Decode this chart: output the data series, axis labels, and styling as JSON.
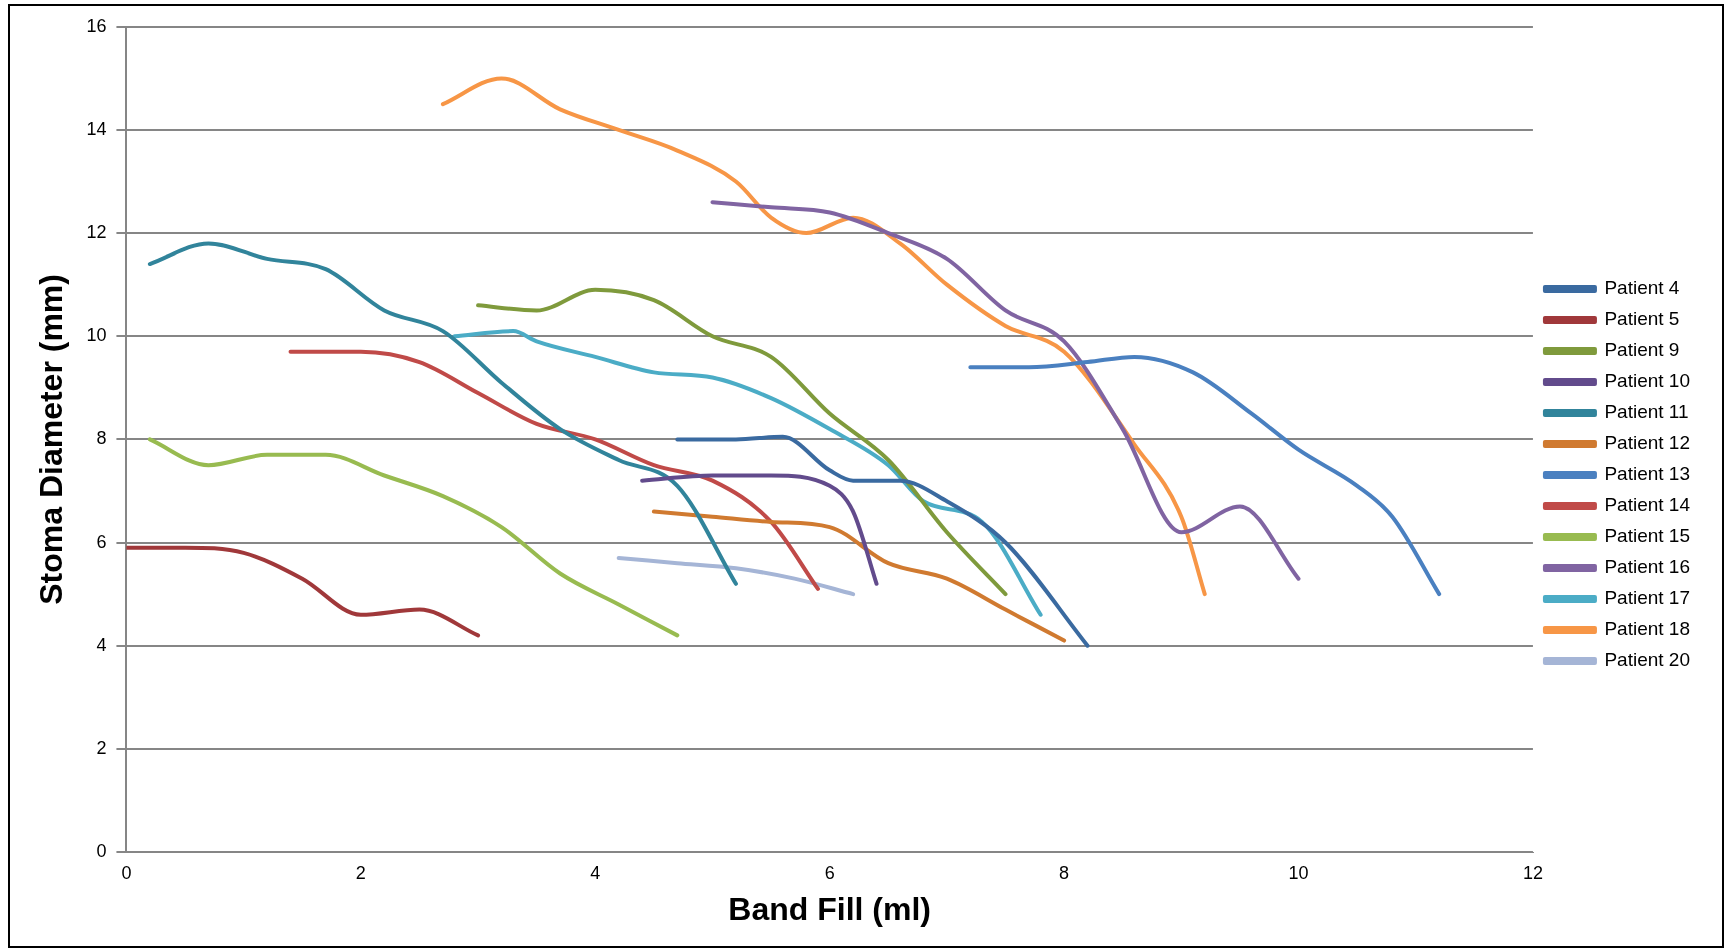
{
  "chart_data": {
    "type": "line",
    "xlabel": "Band Fill (ml)",
    "ylabel": "Stoma Diameter (mm)",
    "xlim": [
      0,
      12
    ],
    "xticks": [
      0,
      2,
      4,
      6,
      8,
      10,
      12
    ],
    "ylim": [
      0,
      16
    ],
    "yticks": [
      0,
      2,
      4,
      6,
      8,
      10,
      12,
      14,
      16
    ],
    "grid": "y",
    "legend": "right",
    "marker": "none",
    "line_style": "solid",
    "series": [
      {
        "name": "Patient 4",
        "color": "#3a6aa0",
        "x": [
          4.7,
          5.2,
          5.6,
          6.0,
          6.2,
          6.6,
          7.0,
          7.5,
          8.2
        ],
        "values": [
          8,
          8.0,
          8.05,
          7.4,
          7.2,
          7.2,
          6.8,
          6.0,
          4.0
        ]
      },
      {
        "name": "Patient 5",
        "color": "#a0383a",
        "x": [
          0,
          0.5,
          1,
          1.5,
          2,
          2.5,
          3
        ],
        "values": [
          5.9,
          5.9,
          5.8,
          5.3,
          4.6,
          4.7,
          4.2
        ]
      },
      {
        "name": "Patient 9",
        "color": "#7f9a3c",
        "x": [
          3,
          3.5,
          4,
          4.5,
          5,
          5.5,
          6,
          6.5,
          7,
          7.5
        ],
        "values": [
          10.6,
          10.5,
          10.9,
          10.7,
          10.0,
          9.6,
          8.5,
          7.6,
          6.2,
          5.0
        ]
      },
      {
        "name": "Patient 10",
        "color": "#624b8c",
        "x": [
          4.4,
          5,
          5.5,
          6,
          6.2,
          6.4
        ],
        "values": [
          7.2,
          7.3,
          7.3,
          7.1,
          6.6,
          5.2
        ]
      },
      {
        "name": "Patient 11",
        "color": "#31849b",
        "x": [
          0.2,
          0.7,
          1.2,
          1.7,
          2.2,
          2.7,
          3.2,
          3.7,
          4.2,
          4.7,
          5.2
        ],
        "values": [
          11.4,
          11.8,
          11.5,
          11.3,
          10.5,
          10.1,
          9.1,
          8.2,
          7.6,
          7.1,
          5.2
        ]
      },
      {
        "name": "Patient 12",
        "color": "#d07a30",
        "x": [
          4.5,
          5,
          5.5,
          6,
          6.5,
          7,
          7.5,
          8
        ],
        "values": [
          6.6,
          6.5,
          6.4,
          6.3,
          5.6,
          5.3,
          4.7,
          4.1
        ]
      },
      {
        "name": "Patient 13",
        "color": "#4a80c0",
        "x": [
          7.2,
          7.7,
          8.2,
          8.6,
          9.1,
          9.6,
          10,
          10.5,
          10.8,
          11.2
        ],
        "values": [
          9.4,
          9.4,
          9.5,
          9.6,
          9.3,
          8.5,
          7.8,
          7.1,
          6.5,
          5.0
        ]
      },
      {
        "name": "Patient 14",
        "color": "#c04a48",
        "x": [
          1.4,
          2,
          2.5,
          3,
          3.5,
          4,
          4.5,
          5,
          5.5,
          5.9
        ],
        "values": [
          9.7,
          9.7,
          9.5,
          8.9,
          8.3,
          8.0,
          7.5,
          7.2,
          6.4,
          5.1
        ]
      },
      {
        "name": "Patient 15",
        "color": "#98bb50",
        "x": [
          0.2,
          0.7,
          1.2,
          1.7,
          2.2,
          2.7,
          3.2,
          3.7,
          4.2,
          4.7
        ],
        "values": [
          8.0,
          7.5,
          7.7,
          7.7,
          7.3,
          6.9,
          6.3,
          5.4,
          4.8,
          4.2
        ]
      },
      {
        "name": "Patient 16",
        "color": "#8064a2",
        "x": [
          5,
          5.5,
          6,
          6.5,
          7,
          7.5,
          8,
          8.5,
          9,
          9.5,
          10
        ],
        "values": [
          12.6,
          12.5,
          12.4,
          12.0,
          11.5,
          10.5,
          9.9,
          8.2,
          6.2,
          6.7,
          5.3
        ]
      },
      {
        "name": "Patient 17",
        "color": "#4bacc6",
        "x": [
          2.8,
          3.3,
          3.5,
          4,
          4.5,
          5,
          5.5,
          6,
          6.5,
          6.8,
          7.3,
          7.8
        ],
        "values": [
          10.0,
          10.1,
          9.9,
          9.6,
          9.3,
          9.2,
          8.8,
          8.2,
          7.5,
          6.8,
          6.4,
          4.6
        ]
      },
      {
        "name": "Patient 18",
        "color": "#f79646",
        "x": [
          2.7,
          3.2,
          3.7,
          4.2,
          4.7,
          5.2,
          5.5,
          5.8,
          6.2,
          6.6,
          7,
          7.5,
          8,
          8.6,
          9,
          9.2
        ],
        "values": [
          14.5,
          15.0,
          14.4,
          14.0,
          13.6,
          13.0,
          12.3,
          12.0,
          12.3,
          11.8,
          11.0,
          10.2,
          9.7,
          7.9,
          6.5,
          5.0
        ]
      },
      {
        "name": "Patient 20",
        "color": "#a5b5d6",
        "x": [
          4.2,
          4.7,
          5.2,
          5.7,
          6.2
        ],
        "values": [
          5.7,
          5.6,
          5.5,
          5.3,
          5.0
        ]
      }
    ]
  }
}
